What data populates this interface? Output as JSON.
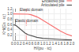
{
  "chart_data": {
    "type": "line",
    "xlabel": "H/(pu · ℓc)",
    "ylabel": "KH/(Es · ℓc)",
    "series": [
      {
        "name": "Encastred pile",
        "color": "#f87070",
        "vline": 0.44,
        "x": [
          0,
          0.05,
          0.1,
          0.2,
          0.3,
          0.4,
          0.5,
          0.6,
          0.7,
          0.8,
          0.9,
          1.0,
          1.1,
          1.2,
          1.4,
          1.6,
          1.8,
          2.0
        ],
        "values": [
          1.0,
          1.0,
          1.0,
          1.0,
          1.0,
          1.0,
          0.99,
          0.97,
          0.94,
          0.89,
          0.83,
          0.76,
          0.69,
          0.62,
          0.48,
          0.35,
          0.24,
          0.16
        ]
      },
      {
        "name": "Articulated pile",
        "color": "#555555",
        "vline": 0.07,
        "x": [
          0,
          0.05,
          0.1,
          0.15,
          0.2,
          0.25,
          0.3,
          0.35,
          0.4,
          0.5,
          0.6,
          0.7,
          0.8,
          1.0,
          1.2,
          1.4,
          1.6,
          1.8,
          2.0
        ],
        "values": [
          0.58,
          0.58,
          0.55,
          0.5,
          0.44,
          0.39,
          0.35,
          0.31,
          0.27,
          0.21,
          0.17,
          0.13,
          0.11,
          0.07,
          0.05,
          0.04,
          0.03,
          0.02,
          0.015
        ]
      }
    ],
    "annotations": [
      {
        "text": "Elastic domain",
        "x": 0.2,
        "y": 1.04
      },
      {
        "text": "Elastic domain",
        "x": 0.03,
        "y": 0.62
      }
    ],
    "xlim": [
      0,
      2.0
    ],
    "ylim": [
      0,
      1.2
    ],
    "xticks": [
      {
        "value": 0,
        "label": "0.0"
      },
      0.2,
      0.4,
      0.6,
      0.8,
      {
        "value": 1.0,
        "label": "1.0"
      },
      1.2,
      1.4,
      1.6,
      1.8,
      {
        "value": 2.0,
        "label": "2.0"
      }
    ],
    "yticks": [
      0.2,
      0.4,
      0.6,
      0.8,
      {
        "value": 1.0,
        "label": "1.0"
      },
      1.2
    ],
    "grid": true,
    "legend": "upper right"
  }
}
